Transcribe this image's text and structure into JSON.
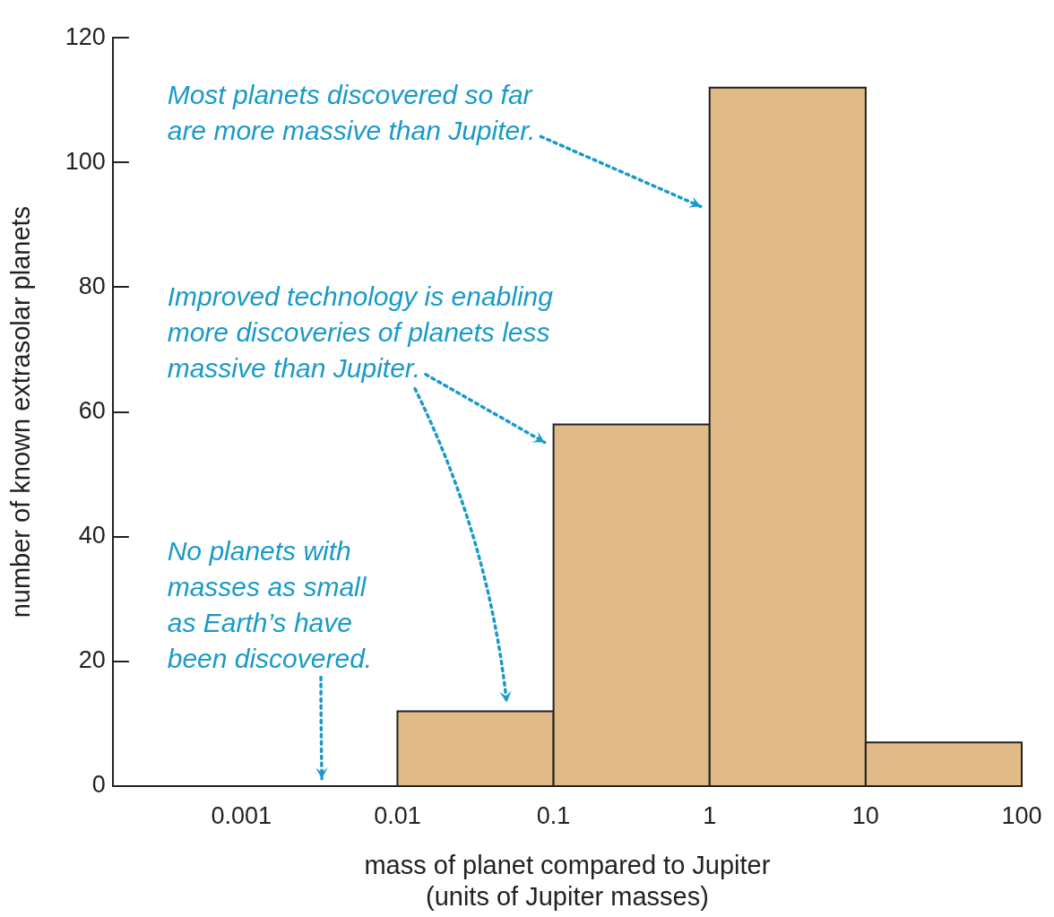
{
  "chart_data": {
    "type": "histogram",
    "xlabel": "mass of planet compared to Jupiter\n(units of Jupiter masses)",
    "ylabel": "number of known extrasolar planets",
    "bins": [
      0.01,
      0.1,
      1,
      10,
      100
    ],
    "values": [
      12,
      58,
      112,
      7
    ],
    "color": "#e0bb88",
    "log": "x",
    "grid": false,
    "xlim": [
      0.00015,
      100
    ],
    "xticks": [
      0.001,
      0.01,
      0.1,
      1,
      10,
      100
    ],
    "ylim": [
      0,
      120
    ],
    "yticks": [
      0,
      20,
      40,
      60,
      80,
      100,
      120
    ],
    "annotations": [
      "Most planets discovered so far are more massive than Jupiter.",
      "Improved technology is enabling more discoveries of planets less massive than Jupiter.",
      "No planets with masses as small as Earth’s have been discovered."
    ]
  }
}
